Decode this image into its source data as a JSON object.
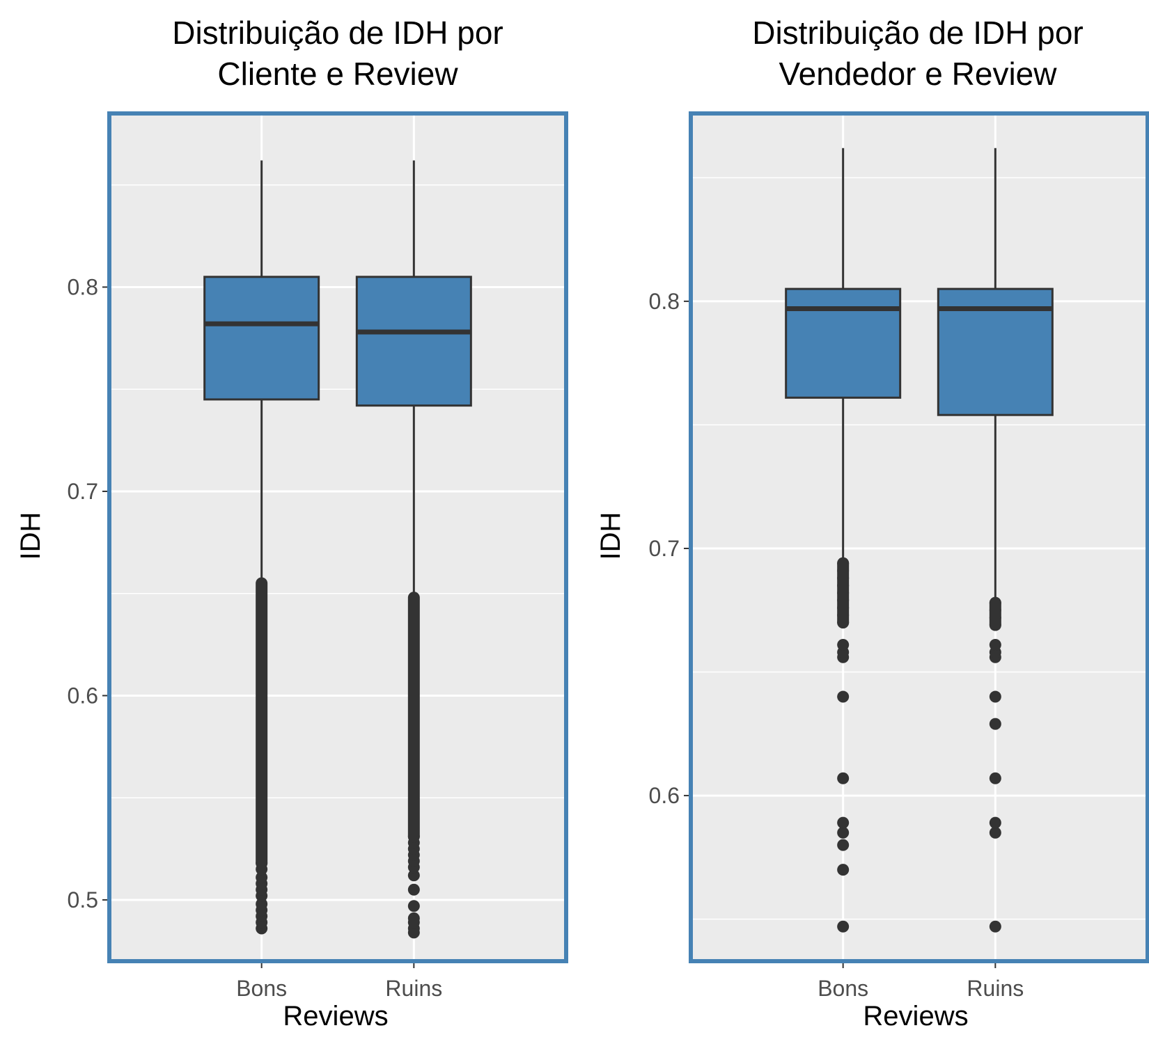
{
  "colors": {
    "panel_background": "#ebebeb",
    "grid": "#ffffff",
    "box_fill": "#4682b4",
    "panel_border": "#4682b4",
    "line": "#333333",
    "tick_text": "#4d4d4d"
  },
  "chart_data": [
    {
      "type": "box",
      "title_lines": [
        "Distribuição de IDH por",
        "Cliente e Review"
      ],
      "xlabel": "Reviews",
      "ylabel": "IDH",
      "categories": [
        "Bons",
        "Ruins"
      ],
      "ylim": [
        0.47,
        0.885
      ],
      "yticks": [
        0.5,
        0.6,
        0.7,
        0.8
      ],
      "ytick_labels": [
        "0.5",
        "0.6",
        "0.7",
        "0.8"
      ],
      "grid": true,
      "boxes": [
        {
          "category": "Bons",
          "whisker_low": 0.655,
          "q1": 0.745,
          "median": 0.782,
          "q3": 0.805,
          "whisker_high": 0.862,
          "outliers": [
            0.486,
            0.489,
            0.492,
            0.495,
            0.498,
            0.502,
            0.505,
            0.508,
            0.511,
            0.515,
            0.518
          ]
        },
        {
          "category": "Ruins",
          "whisker_low": 0.648,
          "q1": 0.742,
          "median": 0.778,
          "q3": 0.805,
          "whisker_high": 0.862,
          "outliers": [
            0.484,
            0.486,
            0.489,
            0.491,
            0.497,
            0.505,
            0.512,
            0.516,
            0.519,
            0.522,
            0.525,
            0.528,
            0.531
          ]
        }
      ],
      "outlier_band": [
        {
          "category": "Bons",
          "from": 0.518,
          "to": 0.655
        },
        {
          "category": "Ruins",
          "from": 0.531,
          "to": 0.648
        }
      ]
    },
    {
      "type": "box",
      "title_lines": [
        "Distribuição de IDH por",
        "Vendedor e Review"
      ],
      "xlabel": "Reviews",
      "ylabel": "IDH",
      "categories": [
        "Bons",
        "Ruins"
      ],
      "ylim": [
        0.533,
        0.876
      ],
      "yticks": [
        0.6,
        0.7,
        0.8
      ],
      "ytick_labels": [
        "0.6",
        "0.7",
        "0.8"
      ],
      "grid": true,
      "boxes": [
        {
          "category": "Bons",
          "whisker_low": 0.695,
          "q1": 0.761,
          "median": 0.797,
          "q3": 0.805,
          "whisker_high": 0.862,
          "outliers": [
            0.547,
            0.57,
            0.58,
            0.585,
            0.589,
            0.607,
            0.64,
            0.656,
            0.658,
            0.661,
            0.67,
            0.673,
            0.676,
            0.679,
            0.682,
            0.685,
            0.688,
            0.691,
            0.694
          ]
        },
        {
          "category": "Ruins",
          "whisker_low": 0.678,
          "q1": 0.754,
          "median": 0.797,
          "q3": 0.805,
          "whisker_high": 0.862,
          "outliers": [
            0.547,
            0.585,
            0.589,
            0.607,
            0.629,
            0.64,
            0.656,
            0.658,
            0.661,
            0.669,
            0.672,
            0.675,
            0.678
          ]
        }
      ],
      "outlier_band": [
        {
          "category": "Bons",
          "from": 0.67,
          "to": 0.694
        },
        {
          "category": "Ruins",
          "from": 0.669,
          "to": 0.678
        }
      ]
    }
  ]
}
